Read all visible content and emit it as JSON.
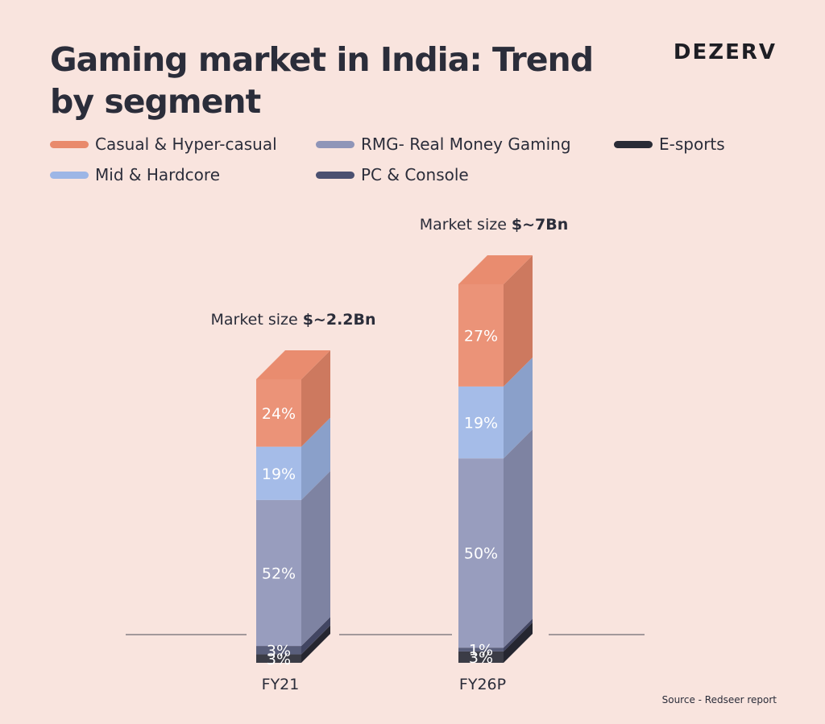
{
  "header": {
    "title_line1": "Gaming market in India: Trend",
    "title_line2": "by segment",
    "brand": "DEZERV"
  },
  "source": "Source - Redseer report",
  "chart_data": {
    "type": "bar",
    "stacked": true,
    "categories": [
      "FY21",
      "FY26P"
    ],
    "unit": "%",
    "market_size_prefix": "Market size ",
    "market_sizes": [
      "$~2.2Bn",
      "$~7Bn"
    ],
    "market_size_values_usd_bn": [
      2.2,
      7
    ],
    "series": [
      {
        "name": "E-sports",
        "values": [
          3,
          3
        ],
        "labels": [
          "3%",
          "3%"
        ],
        "color": "#2a2b36"
      },
      {
        "name": "PC & Console",
        "values": [
          3,
          1
        ],
        "labels": [
          "3%",
          "1%"
        ],
        "color": "#4b5070"
      },
      {
        "name": "RMG- Real Money Gaming",
        "values": [
          52,
          50
        ],
        "labels": [
          "52%",
          "50%"
        ],
        "color": "#8f95b8"
      },
      {
        "name": "Mid & Hardcore",
        "values": [
          19,
          19
        ],
        "labels": [
          "19%",
          "19%"
        ],
        "color": "#9db6e6"
      },
      {
        "name": "Casual & Hyper-casual",
        "values": [
          24,
          27
        ],
        "labels": [
          "24%",
          "27%"
        ],
        "color": "#e98a6c"
      }
    ],
    "legend": {
      "placement": "top",
      "order": [
        "Casual & Hyper-casual",
        "RMG- Real Money Gaming",
        "E-sports",
        "Mid & Hardcore",
        "PC & Console"
      ],
      "colors": [
        "#e98a6c",
        "#8f95b8",
        "#2a2b36",
        "#9db6e6",
        "#4b5070"
      ]
    },
    "grid": false,
    "xlabel": "",
    "ylabel": ""
  }
}
